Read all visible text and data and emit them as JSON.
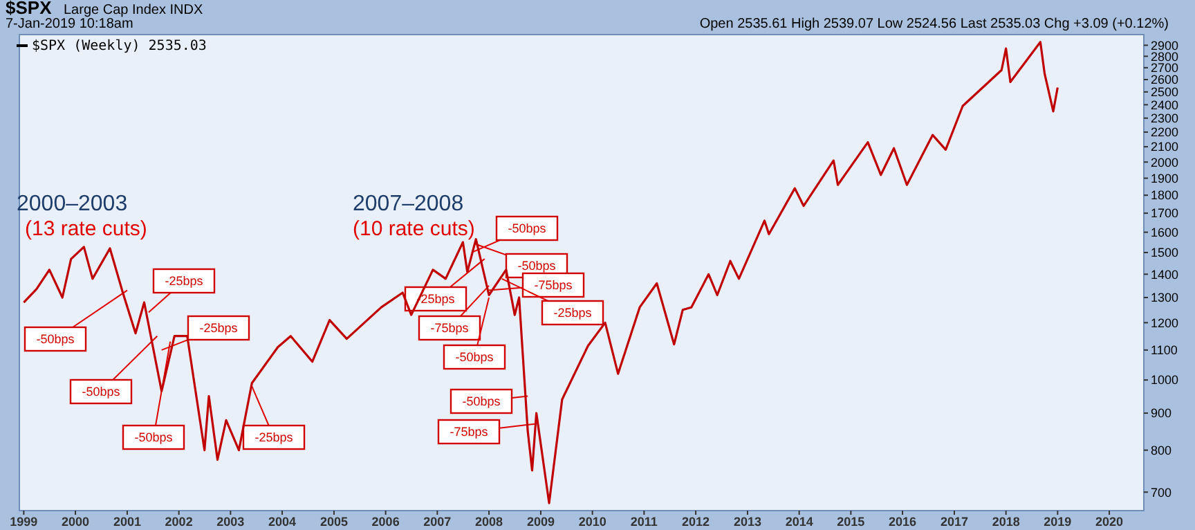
{
  "chart_data": {
    "type": "line",
    "title": "$SPX",
    "subtitle": "Large Cap Index INDX",
    "annotations": [
      "7-Jan-2019 10:18am",
      "Open 2535.61  High 2539.07  Low 2524.56  Last 2535.03  Chg +3.09 (+0.12%)",
      "2000–2003",
      "(13 rate cuts)",
      "2007–2008",
      "(10 rate cuts)",
      {
        "text": "-50bps",
        "x": "2001-01",
        "y": 1330
      },
      {
        "text": "-25bps",
        "x": "2001-06",
        "y": 1240
      },
      {
        "text": "-25bps",
        "x": "2001-09",
        "y": 1100
      },
      {
        "text": "-50bps",
        "x": "2001-08",
        "y": 1150
      },
      {
        "text": "-50bps",
        "x": "2001-11",
        "y": 1130
      },
      {
        "text": "-25bps",
        "x": "2003-06",
        "y": 980
      },
      {
        "text": "-50bps",
        "x": "2007-09",
        "y": 1500
      },
      {
        "text": "-50bps",
        "x": "2007-10",
        "y": 1540
      },
      {
        "text": "-25bps",
        "x": "2007-12",
        "y": 1470
      },
      {
        "text": "-75bps",
        "x": "2008-01",
        "y": 1330
      },
      {
        "text": "-25bps",
        "x": "2008-04",
        "y": 1380
      },
      {
        "text": "-75bps",
        "x": "2008-01",
        "y": 1350
      },
      {
        "text": "-50bps",
        "x": "2008-01",
        "y": 1300
      },
      {
        "text": "-50bps",
        "x": "2008-10",
        "y": 950
      },
      {
        "text": "-75bps",
        "x": "2008-12",
        "y": 870
      }
    ],
    "x": [
      "1999-01",
      "1999-04",
      "1999-07",
      "1999-10",
      "1999-12",
      "2000-03",
      "2000-05",
      "2000-09",
      "2000-12",
      "2001-03",
      "2001-05",
      "2001-09",
      "2001-12",
      "2002-03",
      "2002-07",
      "2002-08",
      "2002-10",
      "2002-12",
      "2003-03",
      "2003-06",
      "2003-12",
      "2004-03",
      "2004-08",
      "2004-12",
      "2005-04",
      "2005-12",
      "2006-05",
      "2006-07",
      "2006-12",
      "2007-03",
      "2007-07",
      "2007-08",
      "2007-10",
      "2008-01",
      "2008-05",
      "2008-07",
      "2008-08",
      "2008-10",
      "2008-11",
      "2008-12",
      "2009-03",
      "2009-06",
      "2009-12",
      "2010-04",
      "2010-07",
      "2010-12",
      "2011-04",
      "2011-08",
      "2011-10",
      "2011-12",
      "2012-04",
      "2012-06",
      "2012-09",
      "2012-11",
      "2013-05",
      "2013-06",
      "2013-12",
      "2014-02",
      "2014-09",
      "2014-10",
      "2015-05",
      "2015-08",
      "2015-11",
      "2016-02",
      "2016-08",
      "2016-11",
      "2017-03",
      "2017-12",
      "2018-01",
      "2018-02",
      "2018-09",
      "2018-10",
      "2018-12",
      "2019-01"
    ],
    "series": [
      {
        "name": "$SPX (Weekly) 2535.03",
        "color": "#c00000",
        "values": [
          1280,
          1335,
          1420,
          1300,
          1469,
          1527,
          1380,
          1520,
          1320,
          1160,
          1280,
          965,
          1150,
          1150,
          800,
          950,
          776,
          880,
          800,
          990,
          1110,
          1150,
          1060,
          1210,
          1140,
          1260,
          1320,
          1230,
          1420,
          1380,
          1550,
          1410,
          1565,
          1310,
          1420,
          1230,
          1300,
          850,
          750,
          900,
          676,
          940,
          1115,
          1200,
          1020,
          1260,
          1360,
          1120,
          1250,
          1260,
          1400,
          1310,
          1460,
          1380,
          1660,
          1590,
          1840,
          1740,
          2010,
          1860,
          2130,
          1920,
          2090,
          1860,
          2180,
          2080,
          2390,
          2680,
          2870,
          2580,
          2930,
          2650,
          2350,
          2535
        ]
      }
    ],
    "log": "y",
    "ylim": [
      660,
      3000
    ],
    "yticks": [
      700,
      800,
      900,
      1000,
      1100,
      1200,
      1300,
      1400,
      1500,
      1600,
      1700,
      1800,
      1900,
      2000,
      2100,
      2200,
      2300,
      2400,
      2500,
      2600,
      2700,
      2800,
      2900
    ],
    "xlim": [
      "1998-12",
      "2020-09"
    ],
    "xticks": [
      "1999",
      "2000",
      "2001",
      "2002",
      "2003",
      "2004",
      "2005",
      "2006",
      "2007",
      "2008",
      "2009",
      "2010",
      "2011",
      "2012",
      "2013",
      "2014",
      "2015",
      "2016",
      "2017",
      "2018",
      "2019",
      "2020"
    ],
    "legend": "top left",
    "grid": false,
    "marker": "none",
    "line_style": "solid"
  }
}
